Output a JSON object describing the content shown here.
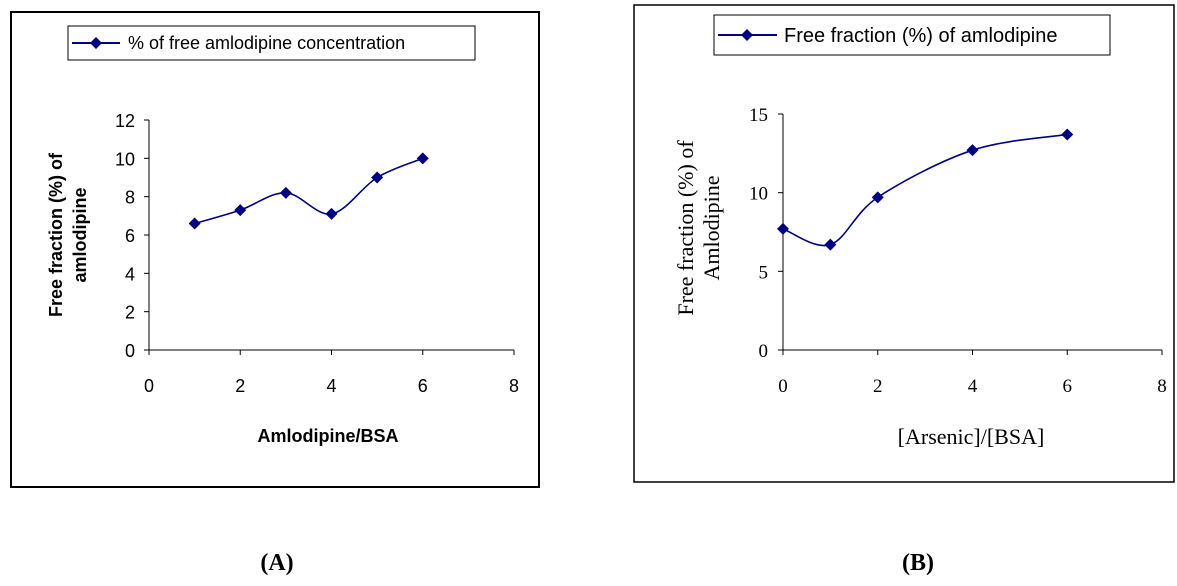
{
  "chart_data": [
    {
      "type": "line",
      "panel_label": "(A)",
      "title": "",
      "xlabel": "Amlodipine/BSA",
      "ylabel": "Free fraction (%) of amlodipine",
      "ylabel_lines": [
        "Free fraction (%) of",
        "amlodipine"
      ],
      "xlim": [
        0,
        8
      ],
      "ylim": [
        0,
        12
      ],
      "xticks": [
        0,
        2,
        4,
        6,
        8
      ],
      "yticks": [
        0,
        2,
        4,
        6,
        8,
        10,
        12
      ],
      "x_tick_labels": [
        "0",
        "2",
        "4",
        "6",
        "8"
      ],
      "y_tick_labels": [
        "0",
        "2",
        "4",
        "6",
        "8",
        "10",
        "12"
      ],
      "grid": false,
      "legend_position": "top",
      "smooth": true,
      "series": [
        {
          "name": "% of free amlodipine concentration",
          "color": "#000080",
          "marker": "diamond",
          "x": [
            1,
            2,
            3,
            4,
            5,
            6
          ],
          "y": [
            6.6,
            7.3,
            8.2,
            7.1,
            9.0,
            10.0
          ]
        }
      ]
    },
    {
      "type": "line",
      "panel_label": "(B)",
      "title": "",
      "xlabel": "[Arsenic]/[BSA]",
      "ylabel": "Free fraction (%) of Amlodipine",
      "ylabel_lines": [
        "Free fraction (%) of",
        "Amlodipine"
      ],
      "xlim": [
        0,
        8
      ],
      "ylim": [
        0,
        15
      ],
      "xticks": [
        0,
        2,
        4,
        6,
        8
      ],
      "yticks": [
        0,
        5,
        10,
        15
      ],
      "x_tick_labels": [
        "0",
        "2",
        "4",
        "6",
        "8"
      ],
      "y_tick_labels": [
        "0",
        "5",
        "10",
        "15"
      ],
      "grid": false,
      "legend_position": "top",
      "smooth": true,
      "series": [
        {
          "name": "Free fraction (%) of amlodipine",
          "color": "#000080",
          "marker": "diamond",
          "x": [
            0,
            1,
            2,
            4,
            6
          ],
          "y": [
            7.7,
            6.7,
            9.7,
            12.7,
            13.7
          ]
        }
      ]
    }
  ]
}
